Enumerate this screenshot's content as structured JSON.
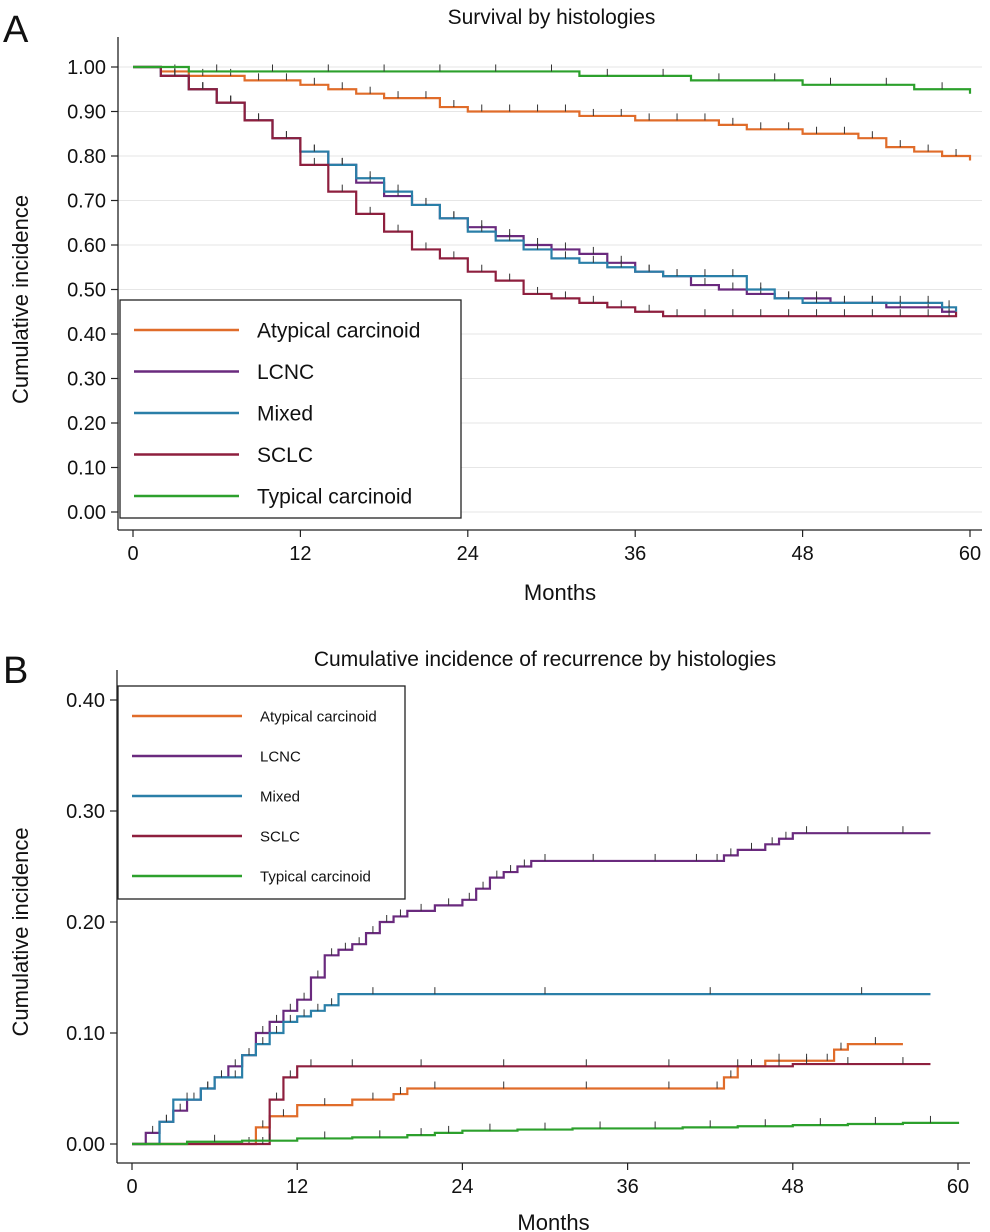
{
  "chart_data": [
    {
      "panel_label": "A",
      "type": "line",
      "step": true,
      "title": "Survival by histologies",
      "xlabel": "Months",
      "ylabel": "Cumulative incidence",
      "xlim": [
        0,
        60
      ],
      "ylim": [
        0,
        1
      ],
      "xticks": [
        "0",
        "12",
        "24",
        "36",
        "48",
        "60"
      ],
      "yticks": [
        "0.00",
        "0.10",
        "0.20",
        "0.30",
        "0.40",
        "0.50",
        "0.60",
        "0.70",
        "0.80",
        "0.90",
        "1.00"
      ],
      "grid": true,
      "legend_position": "bottom-left",
      "series": [
        {
          "name": "Atypical carcinoid",
          "color": "#e06c2a",
          "x": [
            0,
            2,
            4,
            6,
            8,
            10,
            12,
            14,
            16,
            18,
            20,
            22,
            24,
            26,
            28,
            30,
            32,
            34,
            36,
            38,
            40,
            42,
            44,
            46,
            48,
            50,
            52,
            54,
            56,
            58,
            60
          ],
          "y": [
            1.0,
            0.99,
            0.98,
            0.98,
            0.97,
            0.97,
            0.96,
            0.95,
            0.94,
            0.93,
            0.93,
            0.91,
            0.9,
            0.9,
            0.9,
            0.9,
            0.89,
            0.89,
            0.88,
            0.88,
            0.88,
            0.87,
            0.86,
            0.86,
            0.85,
            0.85,
            0.84,
            0.82,
            0.81,
            0.8,
            0.79
          ]
        },
        {
          "name": "LCNC",
          "color": "#6a2a7e",
          "x": [
            0,
            2,
            4,
            6,
            8,
            10,
            12,
            14,
            16,
            18,
            20,
            22,
            24,
            26,
            28,
            30,
            32,
            34,
            36,
            38,
            40,
            42,
            44,
            46,
            48,
            50,
            52,
            54,
            56,
            58,
            59
          ],
          "y": [
            1.0,
            0.98,
            0.95,
            0.92,
            0.88,
            0.84,
            0.81,
            0.78,
            0.74,
            0.71,
            0.69,
            0.66,
            0.64,
            0.62,
            0.6,
            0.59,
            0.58,
            0.56,
            0.54,
            0.53,
            0.51,
            0.5,
            0.49,
            0.48,
            0.48,
            0.47,
            0.47,
            0.46,
            0.46,
            0.45,
            0.45
          ]
        },
        {
          "name": "Mixed",
          "color": "#2a7fa8",
          "x": [
            0,
            2,
            4,
            6,
            8,
            10,
            12,
            14,
            16,
            18,
            20,
            22,
            24,
            26,
            28,
            30,
            32,
            34,
            36,
            38,
            40,
            42,
            44,
            46,
            48,
            50,
            52,
            54,
            56,
            58,
            59
          ],
          "y": [
            1.0,
            0.98,
            0.95,
            0.92,
            0.88,
            0.84,
            0.81,
            0.78,
            0.75,
            0.72,
            0.69,
            0.66,
            0.63,
            0.61,
            0.59,
            0.57,
            0.56,
            0.55,
            0.54,
            0.53,
            0.53,
            0.53,
            0.5,
            0.48,
            0.47,
            0.47,
            0.47,
            0.47,
            0.47,
            0.46,
            0.45
          ]
        },
        {
          "name": "SCLC",
          "color": "#8e1f3e",
          "x": [
            0,
            2,
            4,
            6,
            8,
            10,
            12,
            14,
            16,
            18,
            20,
            22,
            24,
            26,
            28,
            30,
            32,
            34,
            36,
            38,
            40,
            42,
            44,
            46,
            48,
            50,
            52,
            54,
            56,
            58,
            59
          ],
          "y": [
            1.0,
            0.98,
            0.95,
            0.92,
            0.88,
            0.84,
            0.78,
            0.72,
            0.67,
            0.63,
            0.59,
            0.57,
            0.54,
            0.52,
            0.49,
            0.48,
            0.47,
            0.46,
            0.45,
            0.44,
            0.44,
            0.44,
            0.44,
            0.44,
            0.44,
            0.44,
            0.44,
            0.44,
            0.44,
            0.44,
            0.45
          ]
        },
        {
          "name": "Typical carcinoid",
          "color": "#2ca02c",
          "x": [
            0,
            4,
            8,
            12,
            16,
            20,
            24,
            28,
            32,
            36,
            40,
            44,
            48,
            52,
            56,
            60
          ],
          "y": [
            1.0,
            0.99,
            0.99,
            0.99,
            0.99,
            0.99,
            0.99,
            0.99,
            0.98,
            0.98,
            0.97,
            0.97,
            0.96,
            0.96,
            0.95,
            0.94
          ]
        }
      ]
    },
    {
      "panel_label": "B",
      "type": "line",
      "step": true,
      "title": "Cumulative incidence of recurrence by histologies",
      "xlabel": "Months",
      "ylabel": "Cumulative incidence",
      "xlim": [
        0,
        60
      ],
      "ylim": [
        0,
        0.4
      ],
      "xticks": [
        "0",
        "12",
        "24",
        "36",
        "48",
        "60"
      ],
      "yticks": [
        "0.00",
        "0.10",
        "0.20",
        "0.30",
        "0.40"
      ],
      "grid": false,
      "legend_position": "top-left",
      "series": [
        {
          "name": "Atypical carcinoid",
          "color": "#e06c2a",
          "x": [
            0,
            8,
            9,
            10,
            12,
            16,
            19,
            20,
            24,
            30,
            36,
            42,
            43,
            44,
            46,
            48,
            50,
            51,
            52,
            56
          ],
          "y": [
            0.0,
            0.0,
            0.015,
            0.025,
            0.035,
            0.04,
            0.045,
            0.05,
            0.05,
            0.05,
            0.05,
            0.05,
            0.06,
            0.07,
            0.075,
            0.075,
            0.075,
            0.085,
            0.09,
            0.09
          ]
        },
        {
          "name": "LCNC",
          "color": "#6a2a7e",
          "x": [
            0,
            1,
            2,
            3,
            4,
            5,
            6,
            7,
            8,
            9,
            10,
            11,
            12,
            13,
            14,
            15,
            16,
            17,
            18,
            19,
            20,
            22,
            24,
            25,
            26,
            27,
            28,
            29,
            31,
            36,
            40,
            42,
            43,
            44,
            46,
            47,
            48,
            50,
            54,
            58
          ],
          "y": [
            0.0,
            0.01,
            0.02,
            0.03,
            0.04,
            0.05,
            0.06,
            0.07,
            0.08,
            0.1,
            0.11,
            0.12,
            0.13,
            0.15,
            0.17,
            0.175,
            0.18,
            0.19,
            0.2,
            0.205,
            0.21,
            0.215,
            0.22,
            0.23,
            0.24,
            0.245,
            0.25,
            0.255,
            0.255,
            0.255,
            0.255,
            0.255,
            0.26,
            0.265,
            0.27,
            0.275,
            0.28,
            0.28,
            0.28,
            0.28
          ]
        },
        {
          "name": "Mixed",
          "color": "#2a7fa8",
          "x": [
            0,
            2,
            3,
            5,
            6,
            7,
            8,
            9,
            10,
            11,
            12,
            13,
            14,
            15,
            20,
            24,
            36,
            48,
            58
          ],
          "y": [
            0.0,
            0.02,
            0.04,
            0.05,
            0.06,
            0.06,
            0.08,
            0.09,
            0.1,
            0.11,
            0.115,
            0.12,
            0.125,
            0.135,
            0.135,
            0.135,
            0.135,
            0.135,
            0.135
          ]
        },
        {
          "name": "SCLC",
          "color": "#8e1f3e",
          "x": [
            0,
            9,
            10,
            11,
            12,
            14,
            18,
            24,
            30,
            36,
            42,
            46,
            48,
            50,
            54,
            58
          ],
          "y": [
            0.0,
            0.0,
            0.04,
            0.06,
            0.07,
            0.07,
            0.07,
            0.07,
            0.07,
            0.07,
            0.07,
            0.07,
            0.072,
            0.072,
            0.072,
            0.072
          ]
        },
        {
          "name": "Typical carcinoid",
          "color": "#2ca02c",
          "x": [
            0,
            4,
            8,
            12,
            16,
            20,
            22,
            24,
            28,
            32,
            36,
            40,
            44,
            48,
            52,
            56,
            60
          ],
          "y": [
            0.0,
            0.002,
            0.003,
            0.005,
            0.006,
            0.008,
            0.01,
            0.012,
            0.013,
            0.014,
            0.014,
            0.015,
            0.016,
            0.017,
            0.018,
            0.019,
            0.02
          ]
        }
      ]
    }
  ]
}
